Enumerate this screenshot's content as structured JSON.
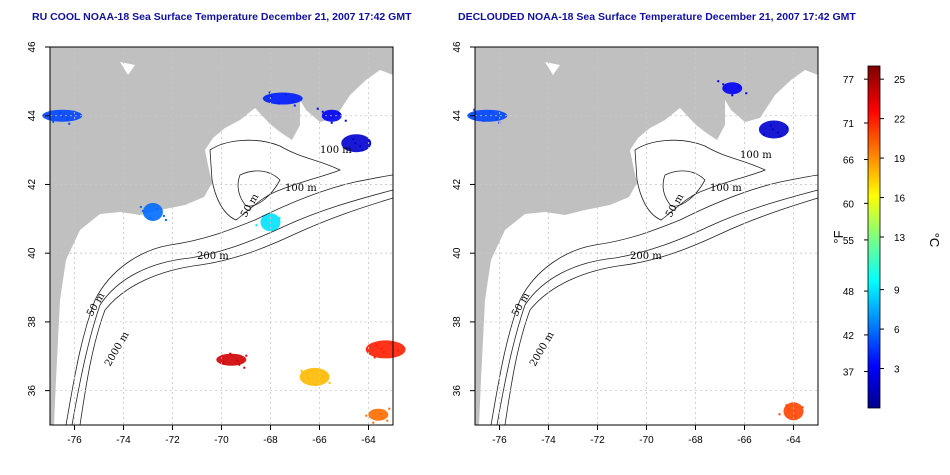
{
  "chart_data": [
    {
      "type": "heatmap",
      "title": "RU COOL NOAA-18 Sea Surface Temperature December 21, 2007 17:42 GMT",
      "xlim": [
        -77,
        -63
      ],
      "ylim": [
        35,
        46
      ],
      "xticks": [
        -76,
        -74,
        -72,
        -70,
        -68,
        -66,
        -64
      ],
      "yticks": [
        36,
        38,
        40,
        42,
        44,
        46
      ],
      "grid": true,
      "contour_labels": [
        "50 m",
        "100 m",
        "200 m",
        "50 m",
        "2000 m",
        "100 m"
      ],
      "sst_patches": [
        {
          "lon": -65.5,
          "lat": 44.0,
          "temp_c": 3
        },
        {
          "lon": -64.5,
          "lat": 43.2,
          "temp_c": 2
        },
        {
          "lon": -67.5,
          "lat": 44.5,
          "temp_c": 4
        },
        {
          "lon": -68.0,
          "lat": 40.9,
          "temp_c": 9
        },
        {
          "lon": -69.6,
          "lat": 36.9,
          "temp_c": 24
        },
        {
          "lon": -63.3,
          "lat": 37.2,
          "temp_c": 22
        },
        {
          "lon": -63.6,
          "lat": 35.3,
          "temp_c": 20
        },
        {
          "lon": -66.2,
          "lat": 36.4,
          "temp_c": 18
        },
        {
          "lon": -76.5,
          "lat": 44.0,
          "temp_c": 5
        },
        {
          "lon": -72.8,
          "lat": 41.2,
          "temp_c": 6
        }
      ]
    },
    {
      "type": "heatmap",
      "title": "DECLOUDED NOAA-18 Sea Surface Temperature December 21, 2007 17:42 GMT",
      "xlim": [
        -77,
        -63
      ],
      "ylim": [
        35,
        46
      ],
      "xticks": [
        -76,
        -74,
        -72,
        -70,
        -68,
        -66,
        -64
      ],
      "yticks": [
        36,
        38,
        40,
        42,
        44,
        46
      ],
      "grid": true,
      "contour_labels": [
        "100 m",
        "100 m",
        "50 m",
        "200 m",
        "50 m",
        "2000 m"
      ],
      "sst_patches": [
        {
          "lon": -66.5,
          "lat": 44.8,
          "temp_c": 3
        },
        {
          "lon": -64.8,
          "lat": 43.6,
          "temp_c": 2
        },
        {
          "lon": -76.5,
          "lat": 44.0,
          "temp_c": 5
        },
        {
          "lon": -64.0,
          "lat": 35.4,
          "temp_c": 21
        }
      ]
    }
  ],
  "colorbar": {
    "fahrenheit_ticks": [
      77,
      71,
      66,
      60,
      55,
      48,
      42,
      37
    ],
    "celsius_ticks": [
      25,
      22,
      19,
      16,
      13,
      9,
      6,
      3
    ],
    "fahrenheit_label": "°F",
    "celsius_label": "°C",
    "range_c": [
      0,
      26
    ]
  }
}
